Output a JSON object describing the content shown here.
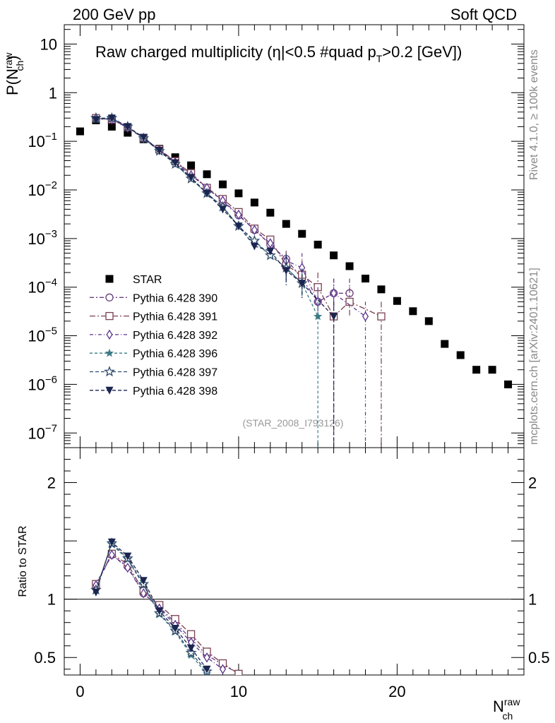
{
  "header": {
    "left": "200 GeV pp",
    "right": "Soft QCD"
  },
  "side_notes": {
    "rivet": "Rivet 4.1.0, ≥ 100k events",
    "mcplots": "mcplots.cern.ch [arXiv:2401.10621]"
  },
  "watermark": "(STAR_2008_I793126)",
  "chart_data": [
    {
      "type": "scatter",
      "title": "Raw charged multiplicity (|η|<0.5 #quad p_T>0.2 [GeV])",
      "title_parts": {
        "a": "Raw charged multiplicity (",
        "b": "η",
        "c": "|<0.5 #quad p",
        "d": "T",
        "e": ">0.2 [GeV])"
      },
      "ylabel": "P(N_ch^raw)",
      "ylabel_parts": {
        "p": "P(N",
        "sup": "raw",
        "sub": "ch",
        "close": ")"
      },
      "yscale": "log",
      "ylim": [
        5e-08,
        25
      ],
      "xlim": [
        -1,
        28
      ],
      "yticks": [
        {
          "v": 10,
          "m": "10",
          "e": ""
        },
        {
          "v": 1,
          "m": "1",
          "e": ""
        },
        {
          "v": 0.1,
          "m": "10",
          "e": "−1"
        },
        {
          "v": 0.01,
          "m": "10",
          "e": "−2"
        },
        {
          "v": 0.001,
          "m": "10",
          "e": "−3"
        },
        {
          "v": 0.0001,
          "m": "10",
          "e": "−4"
        },
        {
          "v": 1e-05,
          "m": "10",
          "e": "−5"
        },
        {
          "v": 1e-06,
          "m": "10",
          "e": "−6"
        },
        {
          "v": 1e-07,
          "m": "10",
          "e": "−7"
        }
      ],
      "legend_position": "middle-left",
      "series": [
        {
          "name": "STAR",
          "color": "#000000",
          "marker": "square-filled",
          "dash": "none",
          "x": [
            0,
            1,
            2,
            3,
            4,
            5,
            6,
            7,
            8,
            9,
            10,
            11,
            12,
            13,
            14,
            15,
            16,
            17,
            18,
            19,
            20,
            21,
            22,
            23,
            24,
            25,
            26,
            27
          ],
          "y": [
            0.16,
            0.27,
            0.2,
            0.15,
            0.11,
            0.07,
            0.047,
            0.032,
            0.021,
            0.013,
            0.0085,
            0.0055,
            0.0034,
            0.002,
            0.00125,
            0.00075,
            0.00045,
            0.00027,
            0.00015,
            9e-05,
            5.2e-05,
            3.2e-05,
            2e-05,
            6.8e-06,
            4e-06,
            2e-06,
            2e-06,
            1e-06
          ]
        },
        {
          "name": "Pythia 6.428 390",
          "color": "#6a3d7e",
          "marker": "circle-open",
          "dash": "6,3,2,3",
          "x": [
            1,
            2,
            3,
            4,
            5,
            6,
            7,
            8,
            9,
            10,
            11,
            12,
            13,
            14,
            15,
            16,
            17
          ],
          "y": [
            0.3,
            0.28,
            0.195,
            0.118,
            0.067,
            0.038,
            0.021,
            0.011,
            0.0058,
            0.003,
            0.0015,
            0.00075,
            0.00038,
            0.00015,
            5e-05,
            7.5e-05,
            7.5e-05
          ]
        },
        {
          "name": "Pythia 6.428 391",
          "color": "#7a4050",
          "marker": "square-open",
          "dash": "8,3,2,3",
          "x": [
            1,
            2,
            3,
            4,
            5,
            6,
            7,
            8,
            9,
            10,
            11,
            12,
            13,
            14,
            15,
            16,
            17,
            19
          ],
          "y": [
            0.3,
            0.28,
            0.195,
            0.118,
            0.068,
            0.039,
            0.022,
            0.011,
            0.0065,
            0.0035,
            0.0016,
            0.00095,
            0.00028,
            0.00018,
            0.0001,
            2.5e-05,
            5e-05,
            2.5e-05
          ]
        },
        {
          "name": "Pythia 6.428 392",
          "color": "#5b3590",
          "marker": "diamond-open",
          "dash": "5,3,1,3",
          "x": [
            1,
            2,
            3,
            4,
            5,
            6,
            7,
            8,
            9,
            10,
            11,
            12,
            13,
            14,
            15,
            16,
            18
          ],
          "y": [
            0.3,
            0.28,
            0.19,
            0.115,
            0.066,
            0.037,
            0.02,
            0.011,
            0.006,
            0.0031,
            0.0015,
            0.0008,
            0.00035,
            0.00025,
            5e-05,
            7.5e-05,
            2.5e-05
          ]
        },
        {
          "name": "Pythia 6.428 396",
          "color": "#3a7a85",
          "marker": "star-filled",
          "dash": "4,3",
          "x": [
            1,
            2,
            3,
            4,
            5,
            6,
            7,
            8,
            9,
            10,
            11,
            12,
            13,
            14,
            15
          ],
          "y": [
            0.28,
            0.3,
            0.2,
            0.115,
            0.063,
            0.034,
            0.017,
            0.0085,
            0.0045,
            0.0018,
            0.00085,
            0.00045,
            0.00025,
            0.00012,
            2.5e-05
          ]
        },
        {
          "name": "Pythia 6.428 397",
          "color": "#2e4a6a",
          "marker": "star-open",
          "dash": "5,3",
          "x": [
            1,
            2,
            3,
            4,
            5,
            6,
            7,
            8,
            9,
            10,
            11,
            12,
            13,
            14
          ],
          "y": [
            0.3,
            0.3,
            0.2,
            0.115,
            0.063,
            0.034,
            0.017,
            0.0085,
            0.0045,
            0.0018,
            0.0009,
            0.00045,
            0.00025,
            0.00012
          ]
        },
        {
          "name": "Pythia 6.428 398",
          "color": "#1a2550",
          "marker": "triangle-down-filled",
          "dash": "5,3",
          "x": [
            1,
            2,
            3,
            4,
            5,
            6,
            7,
            8,
            9,
            10,
            11,
            12,
            13,
            14,
            16
          ],
          "y": [
            0.28,
            0.3,
            0.2,
            0.12,
            0.065,
            0.036,
            0.018,
            0.0085,
            0.004,
            0.0018,
            0.0007,
            0.00055,
            0.00022,
            0.00012,
            2.5e-05
          ]
        }
      ]
    },
    {
      "type": "line",
      "ylabel": "Ratio to STAR",
      "xlabel": "N_ch^raw",
      "xlabel_parts": {
        "n": "N",
        "sup": "raw",
        "sub": "ch"
      },
      "xlim": [
        -1,
        28
      ],
      "ylim": [
        0.35,
        2.3
      ],
      "xticks": [
        0,
        10,
        20
      ],
      "yticks": [
        {
          "v": 2,
          "label": "2"
        },
        {
          "v": 1,
          "label": "1"
        },
        {
          "v": 0.5,
          "label": "0.5"
        }
      ],
      "reference_line": 1,
      "series": [
        {
          "name": "Pythia 6.428 390",
          "color": "#6a3d7e",
          "marker": "circle-open",
          "dash": "6,3,2,3",
          "x": [
            1,
            2,
            3,
            4,
            5,
            6,
            7,
            8,
            9,
            10
          ],
          "y": [
            1.13,
            1.38,
            1.28,
            1.05,
            0.93,
            0.8,
            0.66,
            0.52,
            0.44,
            0.36
          ]
        },
        {
          "name": "Pythia 6.428 391",
          "color": "#7a4050",
          "marker": "square-open",
          "dash": "8,3,2,3",
          "x": [
            1,
            2,
            3,
            4,
            5,
            6,
            7,
            8,
            9,
            10
          ],
          "y": [
            1.13,
            1.39,
            1.3,
            1.07,
            0.95,
            0.83,
            0.7,
            0.55,
            0.45,
            0.36
          ]
        },
        {
          "name": "Pythia 6.428 392",
          "color": "#5b3590",
          "marker": "diamond-open",
          "dash": "5,3,1,3",
          "x": [
            1,
            2,
            3,
            4,
            5,
            6,
            7,
            8,
            9
          ],
          "y": [
            1.12,
            1.38,
            1.27,
            1.05,
            0.92,
            0.78,
            0.63,
            0.5,
            0.4
          ]
        },
        {
          "name": "Pythia 6.428 396",
          "color": "#3a7a85",
          "marker": "star-filled",
          "dash": "4,3",
          "x": [
            1,
            2,
            3,
            4,
            5,
            6,
            7,
            8
          ],
          "y": [
            1.08,
            1.47,
            1.34,
            1.12,
            0.87,
            0.72,
            0.52,
            0.36
          ]
        },
        {
          "name": "Pythia 6.428 397",
          "color": "#2e4a6a",
          "marker": "star-open",
          "dash": "5,3",
          "x": [
            1,
            2,
            3,
            4,
            5,
            6,
            7,
            8
          ],
          "y": [
            1.08,
            1.48,
            1.35,
            1.13,
            0.88,
            0.73,
            0.54,
            0.38
          ]
        },
        {
          "name": "Pythia 6.428 398",
          "color": "#1a2550",
          "marker": "triangle-down-filled",
          "dash": "5,3",
          "x": [
            1,
            2,
            3,
            4,
            5,
            6,
            7,
            8
          ],
          "y": [
            1.06,
            1.49,
            1.37,
            1.16,
            0.9,
            0.75,
            0.58,
            0.4
          ]
        }
      ]
    }
  ]
}
